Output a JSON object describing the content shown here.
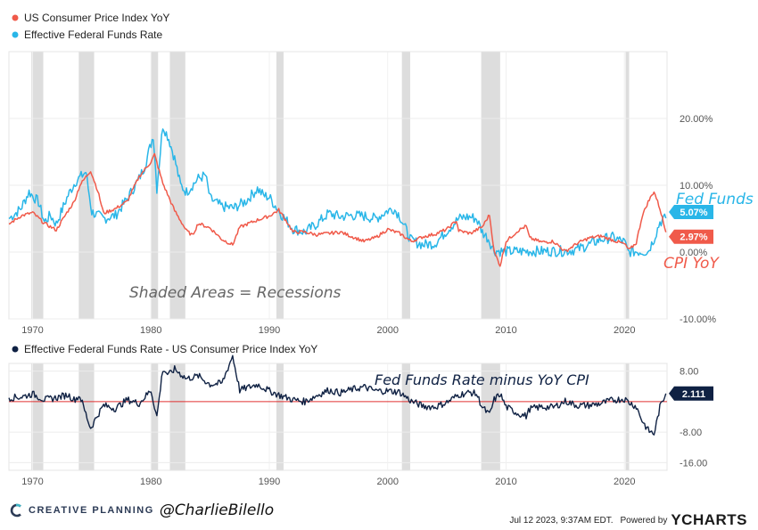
{
  "colors": {
    "cpi": "#f05a4a",
    "ffr": "#29b6e8",
    "spread": "#0f2143",
    "recession": "#dddddd",
    "zero_line": "#e03030"
  },
  "footer": {
    "brand": "CREATIVE PLANNING",
    "handle": "@CharlieBilello",
    "timestamp": "Jul 12 2023, 9:37AM EDT.",
    "powered_by": "Powered by",
    "ycharts": "YCHARTS"
  },
  "annotations": {
    "recessions": "Shaded Areas = Recessions",
    "fed_funds": "Fed Funds",
    "cpi": "CPI YoY",
    "spread_title": "Fed Funds Rate minus YoY CPI"
  },
  "chart_data": [
    {
      "type": "line",
      "title": "",
      "xlabel": "",
      "ylabel": "",
      "xlim": [
        1968,
        2023.6
      ],
      "ylim": [
        -10,
        30
      ],
      "y_ticks": [
        20,
        10,
        0,
        -10
      ],
      "y_tick_labels": [
        "20.00%",
        "10.00%",
        "0.00%",
        "-10.00%"
      ],
      "x_ticks": [
        1970,
        1980,
        1990,
        2000,
        2010,
        2020
      ],
      "x_tick_labels": [
        "1970",
        "1980",
        "1990",
        "2000",
        "2010",
        "2020"
      ],
      "recessions": [
        [
          1969.9,
          1970.9
        ],
        [
          1973.9,
          1975.2
        ],
        [
          1980.0,
          1980.6
        ],
        [
          1981.6,
          1982.9
        ],
        [
          1990.6,
          1991.2
        ],
        [
          2001.2,
          2001.9
        ],
        [
          2007.9,
          2009.5
        ],
        [
          2020.1,
          2020.4
        ]
      ],
      "legend": [
        "US Consumer Price Index YoY",
        "Effective Federal Funds Rate"
      ],
      "end_labels": {
        "ffr": "5.07%",
        "cpi": "2.97%"
      },
      "series": [
        {
          "name": "Effective Federal Funds Rate",
          "x": [
            1968,
            1969,
            1969.7,
            1970.5,
            1971,
            1971.5,
            1972,
            1973,
            1973.6,
            1974.5,
            1975,
            1976,
            1977,
            1978,
            1979,
            1979.5,
            1980.2,
            1980.5,
            1981,
            1981.5,
            1982,
            1982.5,
            1983,
            1984,
            1984.6,
            1985,
            1986,
            1987,
            1988,
            1989,
            1989.5,
            1990,
            1991,
            1992,
            1993,
            1994,
            1995,
            1996,
            1997,
            1998,
            1999,
            2000,
            2000.5,
            2001,
            2001.5,
            2002,
            2003,
            2004,
            2005,
            2006,
            2006.5,
            2007,
            2007.5,
            2008,
            2008.5,
            2009,
            2010,
            2015,
            2016,
            2017,
            2018,
            2019,
            2020,
            2020.3,
            2021,
            2022,
            2022.5,
            2023,
            2023.5
          ],
          "values": [
            5.0,
            6.5,
            9.0,
            7.5,
            4.5,
            5.5,
            4.2,
            8.5,
            10.5,
            12.0,
            6.0,
            5.0,
            5.5,
            8.0,
            11.0,
            13.0,
            17.5,
            9.5,
            19.0,
            17.0,
            14.0,
            10.0,
            9.0,
            11.0,
            11.5,
            8.0,
            6.8,
            6.6,
            7.6,
            9.5,
            8.5,
            8.2,
            5.7,
            3.5,
            3.0,
            4.2,
            5.8,
            5.3,
            5.5,
            5.4,
            5.0,
            6.2,
            6.5,
            5.5,
            3.5,
            1.7,
            1.1,
            1.3,
            3.2,
            5.0,
            5.25,
            5.25,
            5.0,
            3.0,
            2.0,
            0.2,
            0.1,
            0.15,
            0.4,
            1.1,
            1.9,
            2.2,
            1.5,
            0.05,
            0.08,
            0.1,
            2.0,
            4.5,
            5.07
          ]
        },
        {
          "name": "US Consumer Price Index YoY",
          "x": [
            1968,
            1969,
            1970,
            1971,
            1972,
            1973,
            1973.5,
            1974,
            1974.9,
            1975.5,
            1976,
            1977,
            1978,
            1979,
            1980,
            1980.3,
            1981,
            1982,
            1983,
            1983.5,
            1984,
            1985,
            1986,
            1986.9,
            1987.5,
            1988,
            1989,
            1990,
            1990.8,
            1991.5,
            1992,
            1993,
            1994,
            1995,
            1996,
            1997,
            1998,
            1999,
            2000,
            2001,
            2002,
            2003,
            2004,
            2005,
            2005.8,
            2006,
            2007,
            2008,
            2008.6,
            2009,
            2009.5,
            2010,
            2011,
            2011.7,
            2012,
            2013,
            2014,
            2015,
            2016,
            2017,
            2018,
            2019,
            2020,
            2020.4,
            2021,
            2021.5,
            2022,
            2022.5,
            2023,
            2023.5
          ],
          "values": [
            4.2,
            5.4,
            5.9,
            4.3,
            3.3,
            6.2,
            7.5,
            10.0,
            12.2,
            9.2,
            5.8,
            6.5,
            7.6,
            11.3,
            13.5,
            14.6,
            10.3,
            6.2,
            3.2,
            2.5,
            4.3,
            3.6,
            1.9,
            1.1,
            3.7,
            4.1,
            4.8,
            5.4,
            6.3,
            4.5,
            3.0,
            3.0,
            2.6,
            2.8,
            3.0,
            2.3,
            1.6,
            2.2,
            3.4,
            2.8,
            1.6,
            2.3,
            2.7,
            3.4,
            4.7,
            3.2,
            2.8,
            3.8,
            5.6,
            0.0,
            -2.0,
            1.6,
            3.2,
            3.9,
            2.1,
            1.5,
            1.6,
            0.1,
            1.3,
            2.1,
            2.4,
            1.8,
            1.2,
            0.3,
            1.4,
            5.4,
            7.5,
            9.1,
            6.5,
            2.97
          ]
        }
      ]
    },
    {
      "type": "line",
      "title": "",
      "xlabel": "",
      "ylabel": "",
      "xlim": [
        1968,
        2023.6
      ],
      "ylim": [
        -18,
        10
      ],
      "y_ticks": [
        8,
        -8,
        -16
      ],
      "y_tick_labels": [
        "8.00",
        "-8.00",
        "-16.00"
      ],
      "x_ticks": [
        1970,
        1980,
        1990,
        2000,
        2010,
        2020
      ],
      "x_tick_labels": [
        "1970",
        "1980",
        "1990",
        "2000",
        "2010",
        "2020"
      ],
      "recessions": [
        [
          1969.9,
          1970.9
        ],
        [
          1973.9,
          1975.2
        ],
        [
          1980.0,
          1980.6
        ],
        [
          1981.6,
          1982.9
        ],
        [
          1990.6,
          1991.2
        ],
        [
          2001.2,
          2001.9
        ],
        [
          2007.9,
          2009.5
        ],
        [
          2020.1,
          2020.4
        ]
      ],
      "legend": [
        "Effective Federal Funds Rate - US Consumer Price Index YoY"
      ],
      "end_labels": {
        "spread": "2.111"
      },
      "series": [
        {
          "name": "Effective Federal Funds Rate - US Consumer Price Index YoY",
          "x": [
            1968,
            1969,
            1970,
            1971,
            1972,
            1973,
            1973.5,
            1974,
            1974.9,
            1975.5,
            1976,
            1977,
            1978,
            1979,
            1980,
            1980.5,
            1981,
            1981.5,
            1982,
            1983,
            1984,
            1985,
            1986,
            1986.9,
            1987.5,
            1988,
            1989,
            1990,
            1991,
            1992,
            1993,
            1994,
            1995,
            1996,
            1997,
            1998,
            1999,
            2000,
            2001,
            2002,
            2003,
            2004,
            2005,
            2006,
            2007,
            2007.5,
            2008,
            2008.6,
            2009,
            2009.5,
            2010,
            2011,
            2011.7,
            2012,
            2013,
            2014,
            2015,
            2016,
            2017,
            2018,
            2019,
            2020,
            2020.4,
            2021,
            2021.5,
            2022,
            2022.5,
            2023,
            2023.5
          ],
          "values": [
            1.0,
            1.2,
            2.0,
            0.5,
            1.0,
            1.8,
            0.5,
            1.5,
            -7.0,
            -3.5,
            -1.0,
            -1.8,
            0.5,
            -0.5,
            3.0,
            -4.0,
            8.5,
            7.0,
            8.5,
            6.0,
            6.7,
            4.5,
            4.8,
            12.0,
            3.0,
            3.5,
            4.5,
            2.8,
            1.5,
            0.5,
            0.0,
            1.6,
            3.0,
            2.3,
            3.2,
            3.8,
            2.8,
            2.8,
            2.5,
            0.1,
            -1.2,
            -1.4,
            -0.2,
            1.8,
            2.4,
            2.0,
            -1.5,
            -3.5,
            0.5,
            2.0,
            -1.4,
            -3.1,
            -3.8,
            -1.9,
            -1.4,
            -1.5,
            0.1,
            -1.0,
            -1.0,
            -0.5,
            0.4,
            0.7,
            -0.2,
            -1.3,
            -5.0,
            -7.5,
            -8.5,
            -1.5,
            2.111
          ]
        }
      ]
    }
  ]
}
